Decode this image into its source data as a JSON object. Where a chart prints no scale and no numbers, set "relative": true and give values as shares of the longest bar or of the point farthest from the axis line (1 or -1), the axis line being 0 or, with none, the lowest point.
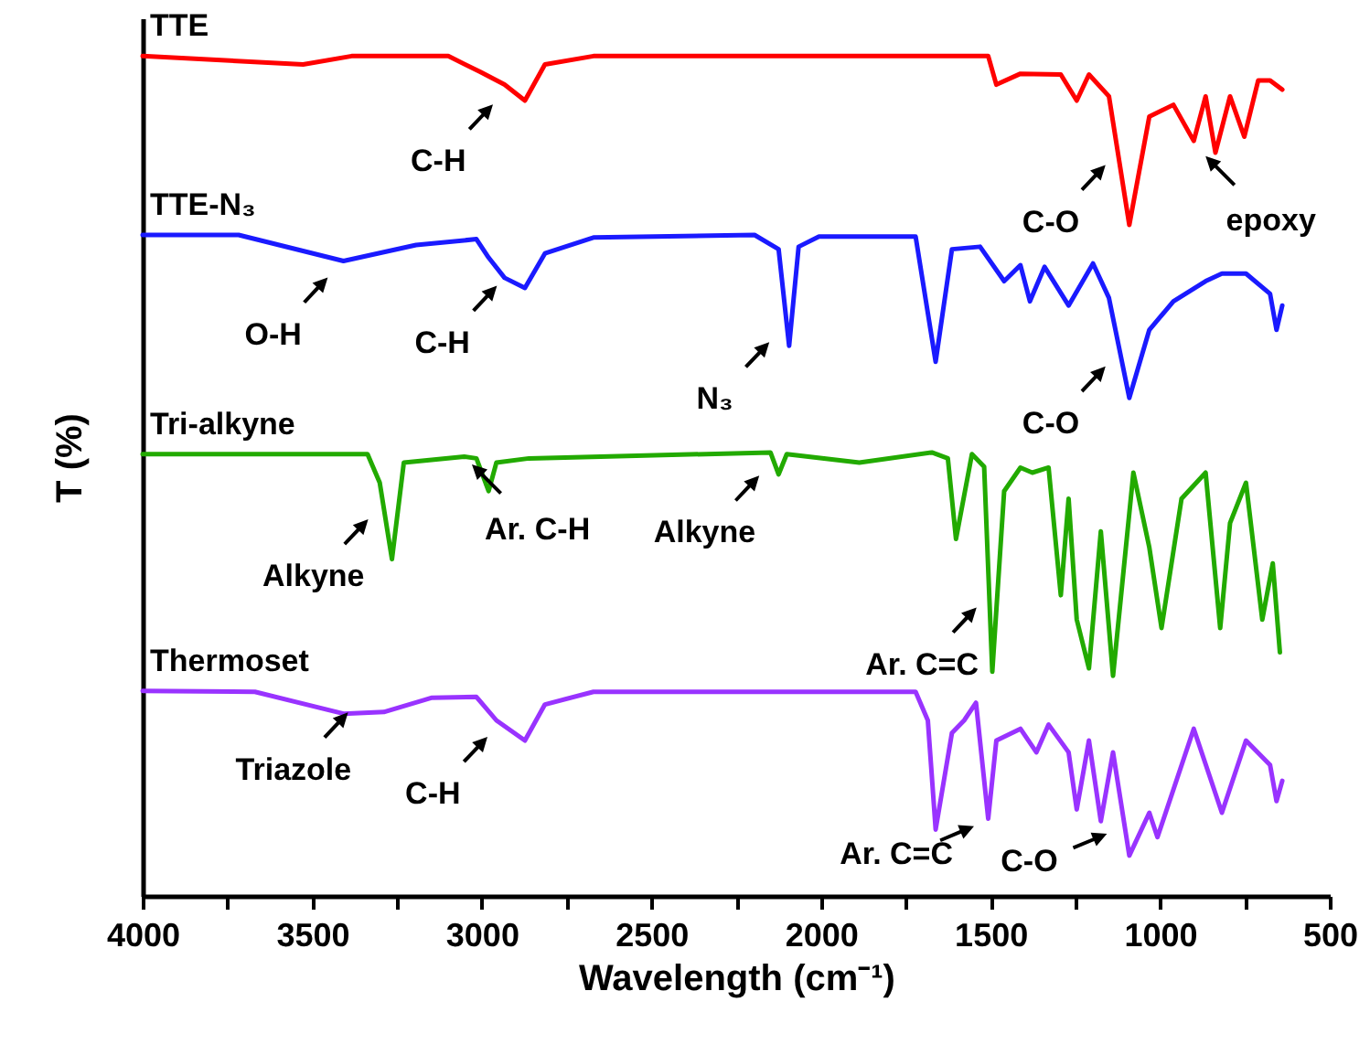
{
  "chart_data": {
    "type": "line",
    "relative": true,
    "xlabel": "Wavelength (cm⁻¹)",
    "ylabel": "T (%)",
    "xlim": [
      4000,
      500
    ],
    "xticks": [
      4000,
      {
        "value": 3750,
        "label": null
      },
      3500,
      {
        "value": 3250,
        "label": null
      },
      3000,
      {
        "value": 2750,
        "label": null
      },
      2500,
      {
        "value": 2250,
        "label": null
      },
      2000,
      {
        "value": 1750,
        "label": null
      },
      1500,
      {
        "value": 1250,
        "label": null
      },
      1000,
      {
        "value": 750,
        "label": null
      },
      500
    ],
    "marker": "none",
    "line_style": "solid",
    "series": [
      {
        "name": "TTE",
        "color": "#ff0000",
        "x": [
          4000,
          3527,
          3384,
          3099,
          3004,
          2933,
          2873,
          2814,
          2671,
          1507,
          1483,
          1412,
          1293,
          1246,
          1210,
          1151,
          1091,
          1032,
          961,
          901,
          866,
          837,
          794,
          752,
          711,
          676,
          640
        ],
        "values": [
          1.0,
          0.99,
          1.0,
          1.0,
          0.981,
          0.966,
          0.947,
          0.99,
          1.0,
          1.0,
          0.966,
          0.979,
          0.978,
          0.947,
          0.978,
          0.952,
          0.799,
          0.928,
          0.942,
          0.899,
          0.952,
          0.885,
          0.952,
          0.904,
          0.971,
          0.971,
          0.96
        ]
      },
      {
        "name": "TTE-N₃",
        "color": "#1a1aff",
        "x": [
          4000,
          3717,
          3408,
          3194,
          3016,
          2980,
          2933,
          2873,
          2814,
          2671,
          2196,
          2125,
          2094,
          2066,
          2006,
          1721,
          1662,
          1614,
          1531,
          1460,
          1412,
          1384,
          1341,
          1270,
          1198,
          1151,
          1091,
          1032,
          961,
          866,
          818,
          747,
          676,
          657,
          640
        ],
        "values": [
          0.787,
          0.787,
          0.756,
          0.775,
          0.782,
          0.76,
          0.736,
          0.724,
          0.765,
          0.784,
          0.787,
          0.77,
          0.655,
          0.773,
          0.785,
          0.785,
          0.636,
          0.77,
          0.773,
          0.732,
          0.751,
          0.708,
          0.749,
          0.703,
          0.753,
          0.712,
          0.593,
          0.674,
          0.708,
          0.732,
          0.741,
          0.741,
          0.717,
          0.674,
          0.703
        ]
      },
      {
        "name": "Tri-alkyne",
        "color": "#22aa00",
        "x": [
          4000,
          3337,
          3301,
          3265,
          3230,
          3052,
          3016,
          2980,
          2957,
          2861,
          2149,
          2125,
          2101,
          1887,
          1673,
          1626,
          1602,
          1555,
          1519,
          1495,
          1460,
          1412,
          1377,
          1329,
          1293,
          1270,
          1246,
          1210,
          1175,
          1139,
          1079,
          1032,
          996,
          937,
          866,
          823,
          794,
          747,
          699,
          668,
          647
        ],
        "values": [
          0.526,
          0.526,
          0.492,
          0.401,
          0.516,
          0.523,
          0.521,
          0.482,
          0.516,
          0.521,
          0.528,
          0.502,
          0.526,
          0.516,
          0.528,
          0.521,
          0.425,
          0.526,
          0.511,
          0.267,
          0.482,
          0.51,
          0.504,
          0.51,
          0.358,
          0.473,
          0.329,
          0.271,
          0.434,
          0.262,
          0.504,
          0.415,
          0.319,
          0.473,
          0.504,
          0.319,
          0.444,
          0.492,
          0.329,
          0.396,
          0.29
        ]
      },
      {
        "name": "Thermoset",
        "color": "#9933ff",
        "x": [
          4000,
          3669,
          3408,
          3289,
          3147,
          3016,
          2957,
          2873,
          2814,
          2671,
          1721,
          1685,
          1662,
          1614,
          1578,
          1543,
          1507,
          1483,
          1412,
          1365,
          1329,
          1270,
          1246,
          1210,
          1175,
          1139,
          1091,
          1032,
          1008,
          901,
          818,
          747,
          676,
          657,
          640
        ],
        "values": [
          0.244,
          0.243,
          0.217,
          0.219,
          0.236,
          0.237,
          0.209,
          0.185,
          0.228,
          0.243,
          0.243,
          0.209,
          0.079,
          0.194,
          0.209,
          0.23,
          0.092,
          0.185,
          0.199,
          0.171,
          0.204,
          0.171,
          0.103,
          0.185,
          0.089,
          0.171,
          0.048,
          0.099,
          0.07,
          0.199,
          0.099,
          0.185,
          0.156,
          0.113,
          0.137
        ]
      }
    ],
    "annotations": [
      {
        "text": "C-H",
        "x": 2945,
        "y": 0.952
      },
      {
        "text": "C-O",
        "x": 1139,
        "y": 0.88
      },
      {
        "text": "epoxy",
        "x": 889,
        "y": 0.89
      },
      {
        "text": "O-H",
        "x": 3432,
        "y": 0.746
      },
      {
        "text": "C-H",
        "x": 2933,
        "y": 0.736
      },
      {
        "text": "N₃",
        "x": 2130,
        "y": 0.669
      },
      {
        "text": "C-O",
        "x": 1139,
        "y": 0.64
      },
      {
        "text": "Alkyne",
        "x": 3313,
        "y": 0.458
      },
      {
        "text": "Ar. C-H",
        "x": 3052,
        "y": 0.523
      },
      {
        "text": "Alkyne",
        "x": 2160,
        "y": 0.51
      },
      {
        "text": "Ar. C=C",
        "x": 1519,
        "y": 0.353
      },
      {
        "text": "Triazole",
        "x": 3372,
        "y": 0.228
      },
      {
        "text": "C-H",
        "x": 2961,
        "y": 0.199
      },
      {
        "text": "Ar. C=C",
        "x": 1519,
        "y": 0.088
      },
      {
        "text": "C-O",
        "x": 1127,
        "y": 0.079
      }
    ]
  }
}
